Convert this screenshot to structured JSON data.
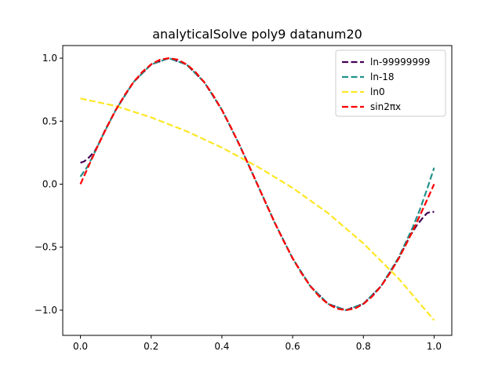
{
  "chart_data": {
    "type": "line",
    "title": "analyticalSolve poly9 datanum20",
    "xlabel": "",
    "ylabel": "",
    "xlim": [
      -0.05,
      1.05
    ],
    "ylim": [
      -1.2,
      1.1
    ],
    "xticks": [
      0.0,
      0.2,
      0.4,
      0.6,
      0.8,
      1.0
    ],
    "xtick_labels": [
      "0.0",
      "0.2",
      "0.4",
      "0.6",
      "0.8",
      "1.0"
    ],
    "yticks": [
      -1.0,
      -0.5,
      0.0,
      0.5,
      1.0
    ],
    "ytick_labels": [
      "−1.0",
      "−0.5",
      "0.0",
      "0.5",
      "1.0"
    ],
    "grid": false,
    "legend_position": "top-right",
    "series": [
      {
        "name": "ln-99999999",
        "color": "#440154",
        "style": "dashed",
        "x": [
          0.0,
          0.01,
          0.02,
          0.03,
          0.04,
          0.05,
          0.07,
          0.1,
          0.15,
          0.2,
          0.25,
          0.3,
          0.35,
          0.4,
          0.45,
          0.5,
          0.55,
          0.6,
          0.65,
          0.7,
          0.75,
          0.8,
          0.85,
          0.9,
          0.93,
          0.95,
          0.97,
          0.98,
          0.99,
          1.0
        ],
        "y": [
          0.17,
          0.18,
          0.2,
          0.23,
          0.26,
          0.31,
          0.43,
          0.59,
          0.81,
          0.95,
          1.0,
          0.95,
          0.81,
          0.59,
          0.31,
          0.0,
          -0.31,
          -0.59,
          -0.81,
          -0.95,
          -1.0,
          -0.95,
          -0.81,
          -0.59,
          -0.42,
          -0.33,
          -0.26,
          -0.23,
          -0.22,
          -0.22
        ]
      },
      {
        "name": "ln-18",
        "color": "#21918c",
        "style": "dashed",
        "x": [
          0.0,
          0.02,
          0.04,
          0.06,
          0.1,
          0.15,
          0.2,
          0.25,
          0.3,
          0.35,
          0.4,
          0.45,
          0.5,
          0.55,
          0.6,
          0.65,
          0.7,
          0.75,
          0.8,
          0.85,
          0.9,
          0.94,
          0.96,
          0.98,
          1.0
        ],
        "y": [
          0.06,
          0.14,
          0.25,
          0.37,
          0.59,
          0.81,
          0.95,
          1.0,
          0.95,
          0.81,
          0.59,
          0.31,
          0.0,
          -0.31,
          -0.59,
          -0.81,
          -0.95,
          -1.0,
          -0.95,
          -0.81,
          -0.58,
          -0.34,
          -0.2,
          -0.04,
          0.13
        ]
      },
      {
        "name": "ln0",
        "color": "#fde725",
        "style": "dashed",
        "x": [
          0.0,
          0.1,
          0.2,
          0.3,
          0.4,
          0.5,
          0.6,
          0.7,
          0.8,
          0.9,
          1.0
        ],
        "y": [
          0.68,
          0.62,
          0.53,
          0.42,
          0.29,
          0.14,
          -0.03,
          -0.23,
          -0.47,
          -0.75,
          -1.08
        ]
      },
      {
        "name": "sin2πx",
        "color": "#ff0000",
        "style": "dashed",
        "x": [
          0.0,
          0.025,
          0.05,
          0.075,
          0.1,
          0.125,
          0.15,
          0.175,
          0.2,
          0.225,
          0.25,
          0.275,
          0.3,
          0.325,
          0.35,
          0.375,
          0.4,
          0.425,
          0.45,
          0.475,
          0.5,
          0.525,
          0.55,
          0.575,
          0.6,
          0.625,
          0.65,
          0.675,
          0.7,
          0.725,
          0.75,
          0.775,
          0.8,
          0.825,
          0.85,
          0.875,
          0.9,
          0.925,
          0.95,
          0.975,
          1.0
        ],
        "y": [
          0.0,
          0.156,
          0.309,
          0.454,
          0.588,
          0.707,
          0.809,
          0.891,
          0.951,
          0.988,
          1.0,
          0.988,
          0.951,
          0.891,
          0.809,
          0.707,
          0.588,
          0.454,
          0.309,
          0.156,
          0.0,
          -0.156,
          -0.309,
          -0.454,
          -0.588,
          -0.707,
          -0.809,
          -0.891,
          -0.951,
          -0.988,
          -1.0,
          -0.988,
          -0.951,
          -0.891,
          -0.809,
          -0.707,
          -0.588,
          -0.454,
          -0.309,
          -0.156,
          0.0
        ]
      }
    ]
  }
}
